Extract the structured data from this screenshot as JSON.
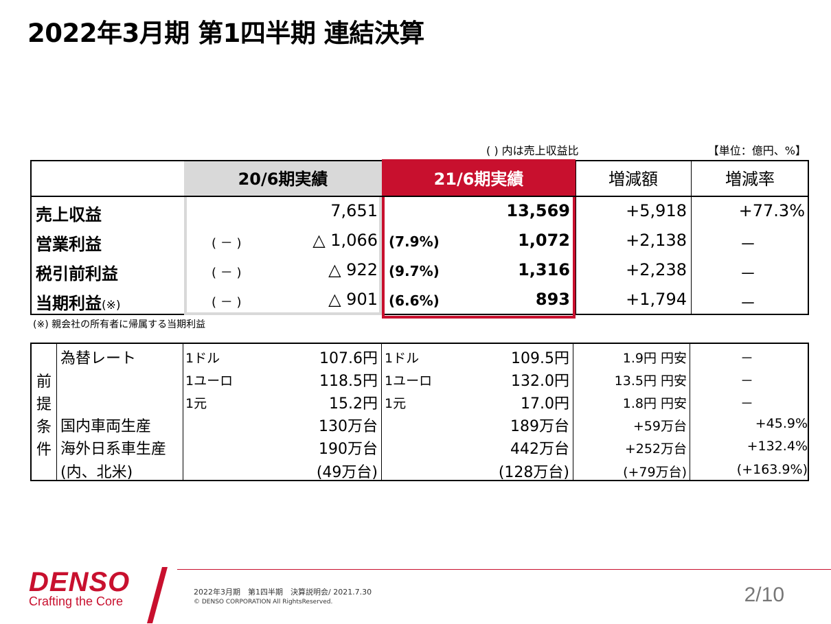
{
  "title": "2022年3月期 第1四半期  連結決算",
  "notes": {
    "ratio": "(  ) 内は売上収益比",
    "unit": "【単位：億円、%】"
  },
  "main_table": {
    "headers": [
      "20/6期実績",
      "21/6期実績",
      "増減額",
      "増減率"
    ],
    "rows": [
      {
        "label": "売上収益",
        "label_suffix": "",
        "prev_ratio": "",
        "prev": "7,651",
        "cur_ratio": "",
        "cur": "13,569",
        "diff": "+5,918",
        "rate": "+77.3%"
      },
      {
        "label": "営業利益",
        "label_suffix": "",
        "prev_ratio": "(  －  )",
        "prev": "△ 1,066",
        "cur_ratio": "(7.9%)",
        "cur": "1,072",
        "diff": "+2,138",
        "rate": "－"
      },
      {
        "label": "税引前利益",
        "label_suffix": "",
        "prev_ratio": "(  －  )",
        "prev": "△ 922",
        "cur_ratio": "(9.7%)",
        "cur": "1,316",
        "diff": "+2,238",
        "rate": "－"
      },
      {
        "label": "当期利益",
        "label_suffix": "(※)",
        "prev_ratio": "(  －  )",
        "prev": "△ 901",
        "cur_ratio": "(6.6%)",
        "cur": "893",
        "diff": "+1,794",
        "rate": "－"
      }
    ],
    "footnote": "(※) 親会社の所有者に帰属する当期利益"
  },
  "assumptions": {
    "side_label": [
      "前",
      "提",
      "条",
      "件"
    ],
    "rows": [
      {
        "label": "為替レート",
        "prev_unit": "1ドル",
        "prev": "107.6円",
        "cur_unit": "1ドル",
        "cur": "109.5円",
        "diff": "1.9円 円安",
        "rate": "－"
      },
      {
        "label": "",
        "prev_unit": "1ユーロ",
        "prev": "118.5円",
        "cur_unit": "1ユーロ",
        "cur": "132.0円",
        "diff": "13.5円 円安",
        "rate": "－"
      },
      {
        "label": "",
        "prev_unit": "1元",
        "prev": "15.2円",
        "cur_unit": "1元",
        "cur": "17.0円",
        "diff": "1.8円 円安",
        "rate": "－"
      },
      {
        "label": "国内車両生産",
        "prev_unit": "",
        "prev": "130万台",
        "cur_unit": "",
        "cur": "189万台",
        "diff": "+59万台",
        "rate": "+45.9%"
      },
      {
        "label": "海外日系車生産",
        "prev_unit": "",
        "prev": "190万台",
        "cur_unit": "",
        "cur": "442万台",
        "diff": "+252万台",
        "rate": "+132.4%"
      },
      {
        "label": "(内、北米)",
        "prev_unit": "",
        "prev": "(49万台)",
        "cur_unit": "",
        "cur": "(128万台)",
        "diff": "(+79万台)",
        "rate": "(+163.9%)"
      }
    ]
  },
  "footer": {
    "logo": "DENSO",
    "tagline": "Crafting the Core",
    "event": "2022年3月期　第1四半期　決算説明会/ 2021.7.30",
    "copyright": "© DENSO CORPORATION All RightsReserved.",
    "page": "2/10"
  },
  "colors": {
    "accent": "#c8102e",
    "gray_band": "#d9d9d9"
  }
}
